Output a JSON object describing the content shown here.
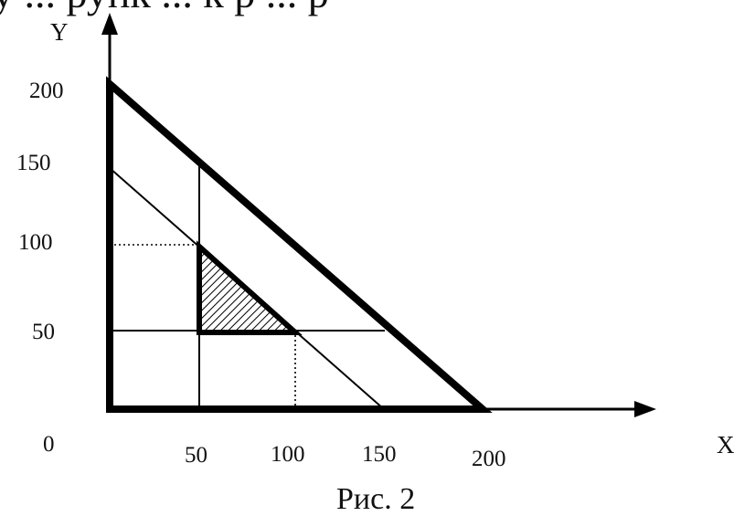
{
  "header_text": "у   ... рупк ... к р ... р",
  "axes": {
    "x_label": "X",
    "y_label": "Y",
    "origin_label": "0",
    "x_ticks": [
      "50",
      "100",
      "150",
      "200"
    ],
    "y_ticks": [
      "200",
      "150",
      "100",
      "50"
    ]
  },
  "caption": "Рис. 2",
  "colors": {
    "ink": "#000000"
  }
}
